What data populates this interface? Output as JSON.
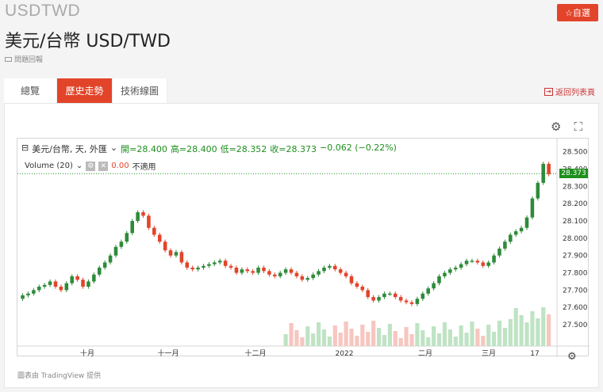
{
  "header": {
    "symbol": "USDTWD",
    "title": "美元/台幣 USD/TWD",
    "report_label": "問題回報",
    "favorite_label": "☆自選"
  },
  "tabs": [
    {
      "label": "總覽"
    },
    {
      "label": "歷史走勢"
    },
    {
      "label": "技術線圖"
    }
  ],
  "back_label": "返回列表頁",
  "legend": {
    "pair": "美元/台幣, 天, 外匯",
    "open": "開=28.400",
    "high": "高=28.400",
    "low": "低=28.352",
    "close": "收=28.373",
    "change": "−0.062 (−0.22%)",
    "volume_label": "Volume (20)",
    "volume_value": "0.00",
    "volume_na": "不適用"
  },
  "current_price": "28.373",
  "credit": "圖表由 TradingView 提供",
  "colors": {
    "up": "#2e8b3a",
    "down": "#e2442a",
    "brand": "#e2442a"
  },
  "icons": [
    "gear-icon",
    "fullscreen-icon",
    "chevron-down-icon",
    "settings-icon",
    "close-icon"
  ],
  "chart_data": {
    "type": "candlestick",
    "y_ticks": [
      "28.500",
      "28.400",
      "28.300",
      "28.200",
      "28.100",
      "28.000",
      "27.900",
      "27.800",
      "27.700",
      "27.600",
      "27.500"
    ],
    "ylim": [
      27.45,
      28.53
    ],
    "x_ticks": [
      "十月",
      "十一月",
      "十二月",
      "2022",
      "二月",
      "三月",
      "17"
    ],
    "series_close": [
      27.67,
      27.68,
      27.7,
      27.72,
      27.73,
      27.75,
      27.72,
      27.7,
      27.74,
      27.78,
      27.76,
      27.72,
      27.75,
      27.79,
      27.83,
      27.86,
      27.9,
      27.95,
      27.98,
      28.03,
      28.1,
      28.15,
      28.13,
      28.06,
      28.02,
      27.98,
      27.93,
      27.9,
      27.92,
      27.86,
      27.83,
      27.82,
      27.83,
      27.84,
      27.85,
      27.86,
      27.87,
      27.84,
      27.83,
      27.8,
      27.82,
      27.81,
      27.8,
      27.83,
      27.81,
      27.79,
      27.78,
      27.8,
      27.82,
      27.8,
      27.78,
      27.76,
      27.77,
      27.79,
      27.81,
      27.83,
      27.84,
      27.82,
      27.8,
      27.78,
      27.74,
      27.72,
      27.7,
      27.66,
      27.64,
      27.66,
      27.68,
      27.68,
      27.66,
      27.64,
      27.63,
      27.62,
      27.65,
      27.68,
      27.71,
      27.74,
      27.78,
      27.8,
      27.82,
      27.83,
      27.85,
      27.87,
      27.87,
      27.86,
      27.84,
      27.86,
      27.9,
      27.94,
      27.98,
      28.02,
      28.04,
      28.06,
      28.12,
      28.23,
      28.32,
      28.43,
      28.37
    ]
  }
}
